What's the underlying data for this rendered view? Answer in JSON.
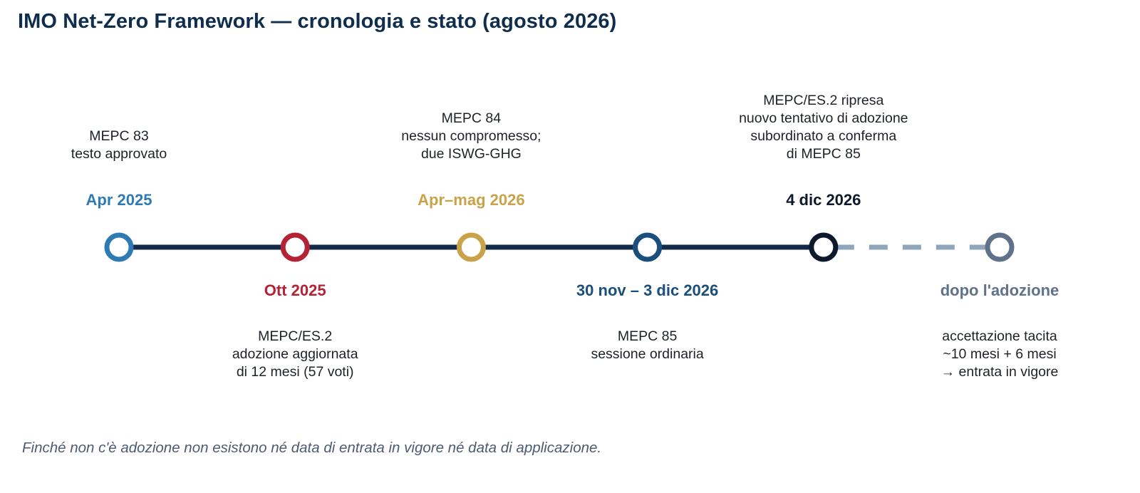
{
  "title": "IMO Net-Zero Framework — cronologia e stato (agosto 2026)",
  "footnote": "Finché non c'è adozione non esistono né data di entrata in vigore né data di applicazione.",
  "colors": {
    "title": "#0f2d4d",
    "line_solid": "#112a48",
    "line_dashed": "#8ea5bb",
    "apr_2025": "#2e7bb4",
    "ott_2025": "#b52234",
    "apr_mag_2026": "#c9a24a",
    "nov_dic_2026": "#1a4e7c",
    "dic_2026": "#0e1a2b",
    "dopo": "#60728a"
  },
  "events": [
    {
      "id": "apr-2025",
      "date": "Apr 2025",
      "color": "#2e7bb4",
      "date_position": "above",
      "lines": [
        "MEPC 83",
        "testo approvato"
      ]
    },
    {
      "id": "ott-2025",
      "date": "Ott 2025",
      "color": "#b52234",
      "date_position": "below",
      "lines": [
        "MEPC/ES.2",
        "adozione aggiornata",
        "di 12 mesi (57 voti)"
      ]
    },
    {
      "id": "apr-mag-2026",
      "date": "Apr–mag 2026",
      "color": "#c9a24a",
      "date_position": "above",
      "lines": [
        "MEPC 84",
        "nessun compromesso;",
        "due ISWG-GHG"
      ]
    },
    {
      "id": "nov-dic-2026",
      "date": "30 nov – 3 dic 2026",
      "color": "#1a4e7c",
      "date_position": "below",
      "lines": [
        "MEPC 85",
        "sessione ordinaria"
      ]
    },
    {
      "id": "dic-2026",
      "date": "4 dic 2026",
      "color": "#0e1a2b",
      "date_position": "above",
      "lines": [
        "MEPC/ES.2 ripresa",
        "nuovo tentativo di adozione",
        "subordinato a conferma",
        "di MEPC 85"
      ]
    },
    {
      "id": "dopo-adozione",
      "date": "dopo l'adozione",
      "color": "#60728a",
      "date_position": "below",
      "lines": [
        "accettazione tacita",
        "~10 mesi + 6 mesi",
        "→ entrata in vigore"
      ]
    }
  ]
}
